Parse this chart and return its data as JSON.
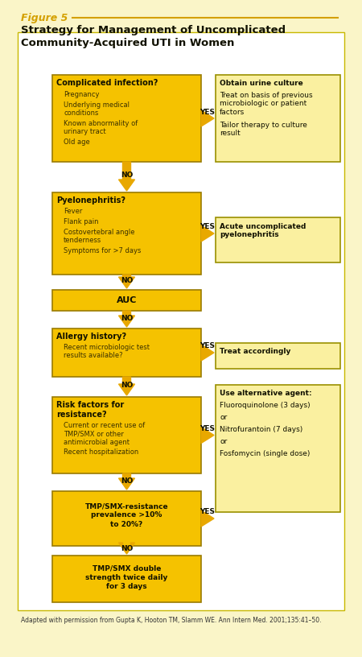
{
  "bg_color": "#FAF5C8",
  "white_bg": "#FFFFFF",
  "box_yellow_fill": "#F5C200",
  "box_yellow_border": "#9A7B00",
  "box_light_fill": "#FAF0A0",
  "box_light_border": "#9A9000",
  "arrow_color": "#E8A800",
  "title_fig_label": "Figure 5",
  "title_fig_color": "#D4A000",
  "title_main_line1": "Strategy for Management of Uncomplicated",
  "title_main_line2": "Community-Acquired UTI in Women",
  "title_color": "#111100",
  "footnote_normal": "Adapted with permission from Gupta K, Hooton TM, Slamm WE. ",
  "footnote_italic": "Ann Intern Med",
  "footnote_end": ". 2001;135:41–50.",
  "box1_title": "Complicated infection?",
  "box1_bullets": [
    "Pregnancy",
    "Underlying medical\nconditions",
    "Known abnormality of\nurinary tract",
    "Old age"
  ],
  "box1r_bullets": [
    "Obtain urine culture",
    "Treat on basis of previous\nmicrobiologic or patient\nfactors",
    "Tailor therapy to culture\nresult"
  ],
  "box2_title": "Pyelonephritis?",
  "box2_bullets": [
    "Fever",
    "Flank pain",
    "Costovertebral angle\ntenderness",
    "Symptoms for >7 days"
  ],
  "box2r_bullets": [
    "Acute uncomplicated\npyelonephritis"
  ],
  "box3_title": "AUC",
  "box4_title": "Allergy history?",
  "box4_bullets": [
    "Recent microbiologic test\nresults available?"
  ],
  "box4r_bullets": [
    "Treat accordingly"
  ],
  "box5_title": "Risk factors for\nresistance?",
  "box5_bullets": [
    "Current or recent use of\nTMP/SMX or other\nantimicrobial agent",
    "Recent hospitalization"
  ],
  "box5r_bullets": [
    "Use alternative agent:",
    "Fluoroquinolone (3 days)",
    "or",
    "Nitrofurantoin (7 days)",
    "or",
    "Fosfomycin (single dose)"
  ],
  "box6_title": "TMP/SMX-resistance\nprevalence >10%\nto 20%?",
  "box7_title": "TMP/SMX double\nstrength twice daily\nfor 3 days"
}
